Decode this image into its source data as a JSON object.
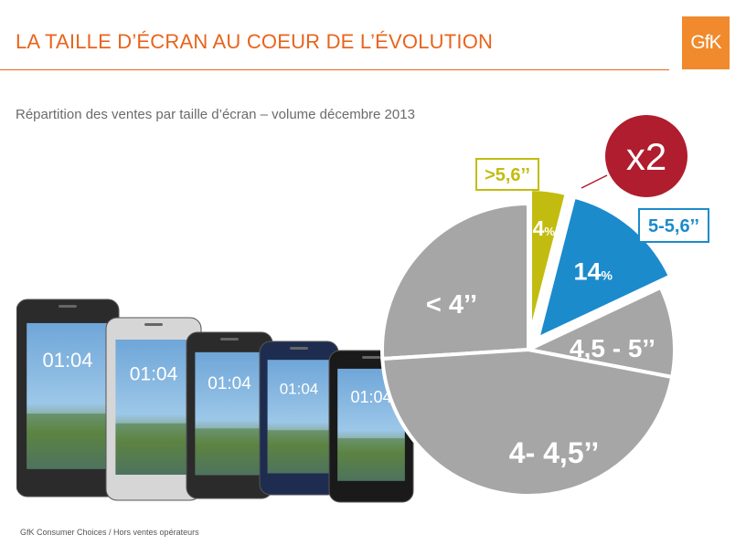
{
  "header": {
    "title": "LA TAILLE D’ÉCRAN AU COEUR DE L’ÉVOLUTION",
    "logo_text": "GfK"
  },
  "subtitle": "Répartition des ventes par taille d’écran – volume décembre 2013",
  "footer": "GfK Consumer Choices / Hors ventes opérateurs",
  "phones": {
    "clock_text": "01:04",
    "count": 5
  },
  "chart_data": {
    "type": "pie",
    "title": "Répartition des ventes par taille d’écran – volume décembre 2013",
    "slices": [
      {
        "label": "< 4’’",
        "value": 26,
        "color": "#a6a6a6",
        "value_text": ""
      },
      {
        "label": ">5,6’’",
        "value": 4,
        "color": "#c3bc10",
        "value_text": "4",
        "unit": "%",
        "exploded": true,
        "callout": true
      },
      {
        "label": "5-5,6’’",
        "value": 14,
        "color": "#1b8bcb",
        "value_text": "14",
        "unit": "%",
        "exploded": true,
        "callout": true
      },
      {
        "label": "4,5 - 5’’",
        "value": 10,
        "color": "#a6a6a6",
        "value_text": ""
      },
      {
        "label": "4- 4,5’’",
        "value": 46,
        "color": "#a6a6a6",
        "value_text": ""
      }
    ],
    "badge": {
      "text": "x2",
      "color": "#b01d2e"
    }
  }
}
